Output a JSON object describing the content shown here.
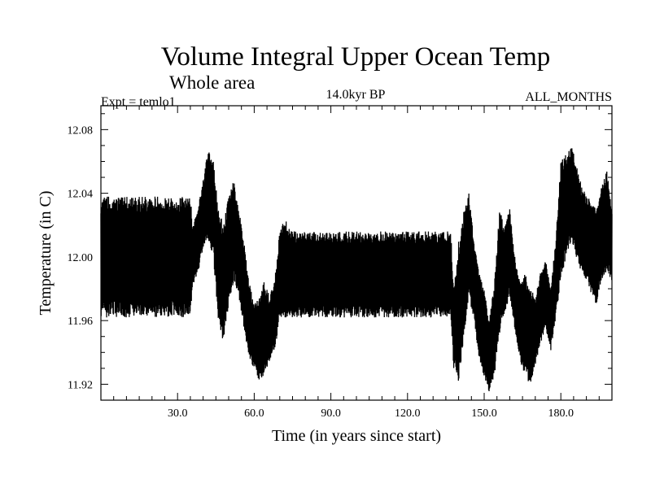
{
  "chart_data": {
    "type": "line",
    "title": "Volume Integral Upper Ocean Temp",
    "subtitle": "Whole area",
    "annotations": {
      "left": "Expt = temlo1",
      "center": "14.0kyr BP",
      "right": "ALL_MONTHS"
    },
    "xlabel": "Time (in years since start)",
    "ylabel": "Temperature (in C)",
    "xlim": [
      0,
      200
    ],
    "ylim": [
      11.91,
      12.095
    ],
    "x_ticks": [
      30,
      60,
      90,
      120,
      150,
      180
    ],
    "x_tick_labels": [
      "30.0",
      "60.0",
      "90.0",
      "120.0",
      "150.0",
      "180.0"
    ],
    "y_ticks": [
      11.92,
      11.96,
      12.0,
      12.04,
      12.08
    ],
    "y_tick_labels": [
      "11.92",
      "11.96",
      "12.00",
      "12.04",
      "12.08"
    ],
    "grid": false,
    "series": [
      {
        "sampling": "monthly, approximate envelope",
        "x": [
          0,
          5,
          10,
          15,
          20,
          25,
          30,
          35,
          36,
          38,
          40,
          42,
          44,
          46,
          48,
          50,
          52,
          54,
          56,
          58,
          60,
          62,
          64,
          66,
          68,
          70,
          72,
          74,
          76,
          80,
          90,
          100,
          110,
          120,
          130,
          137,
          138,
          140,
          142,
          144,
          146,
          148,
          150,
          152,
          154,
          156,
          158,
          160,
          162,
          164,
          166,
          168,
          170,
          172,
          174,
          176,
          178,
          180,
          182,
          184,
          186,
          188,
          190,
          192,
          194,
          196,
          198,
          200
        ],
        "y_max": [
          12.038,
          12.038,
          12.038,
          12.038,
          12.038,
          12.038,
          12.038,
          12.038,
          12.02,
          12.03,
          12.05,
          12.067,
          12.06,
          12.03,
          12.02,
          12.04,
          12.048,
          12.03,
          12.01,
          11.985,
          11.97,
          11.975,
          11.985,
          11.975,
          11.985,
          12.017,
          12.025,
          12.017,
          12.016,
          12.016,
          12.016,
          12.016,
          12.016,
          12.016,
          12.016,
          12.016,
          11.98,
          12.01,
          12.03,
          12.04,
          12.01,
          11.99,
          11.98,
          11.96,
          11.985,
          12.03,
          12.02,
          12.03,
          12.0,
          11.985,
          11.99,
          11.98,
          11.975,
          11.99,
          12.0,
          11.98,
          12.01,
          12.06,
          12.065,
          12.07,
          12.06,
          12.045,
          12.04,
          12.035,
          12.03,
          12.045,
          12.055,
          12.03
        ],
        "y_min": [
          11.962,
          11.962,
          11.962,
          11.962,
          11.962,
          11.962,
          11.962,
          11.962,
          11.98,
          11.99,
          12.005,
          12.01,
          12.0,
          11.96,
          11.945,
          11.97,
          11.985,
          11.975,
          11.955,
          11.935,
          11.93,
          11.922,
          11.925,
          11.935,
          11.94,
          11.962,
          11.962,
          11.962,
          11.962,
          11.962,
          11.962,
          11.962,
          11.962,
          11.962,
          11.962,
          11.962,
          11.93,
          11.92,
          11.95,
          11.975,
          11.96,
          11.935,
          11.925,
          11.915,
          11.925,
          11.95,
          11.965,
          11.975,
          11.955,
          11.935,
          11.925,
          11.92,
          11.93,
          11.945,
          11.955,
          11.94,
          11.96,
          11.985,
          12.0,
          12.01,
          12.0,
          11.99,
          11.985,
          11.975,
          11.97,
          11.985,
          11.99,
          11.985
        ]
      }
    ]
  }
}
